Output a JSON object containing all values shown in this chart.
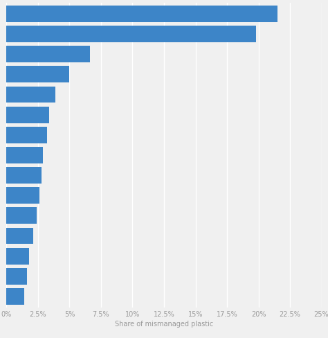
{
  "values": [
    21.5,
    19.8,
    6.6,
    5.0,
    3.9,
    3.4,
    3.2,
    2.9,
    2.8,
    2.6,
    2.4,
    2.1,
    1.8,
    1.6,
    1.4
  ],
  "bar_color": "#3d85c8",
  "background_color": "#f0f0f0",
  "xlabel": "Share of mismanaged plastic",
  "xlim": [
    0,
    25
  ],
  "xtick_values": [
    0,
    2.5,
    5,
    7.5,
    10,
    12.5,
    15,
    17.5,
    20,
    22.5,
    25
  ],
  "xtick_labels": [
    "0%",
    "2.5%",
    "5%",
    "7.5%",
    "10%",
    "12.5%",
    "15%",
    "17.5%",
    "20%",
    "22.5%",
    "25%"
  ],
  "grid_color": "#ffffff",
  "xlabel_fontsize": 7.0,
  "xtick_fontsize": 7.0,
  "bar_height": 0.82
}
